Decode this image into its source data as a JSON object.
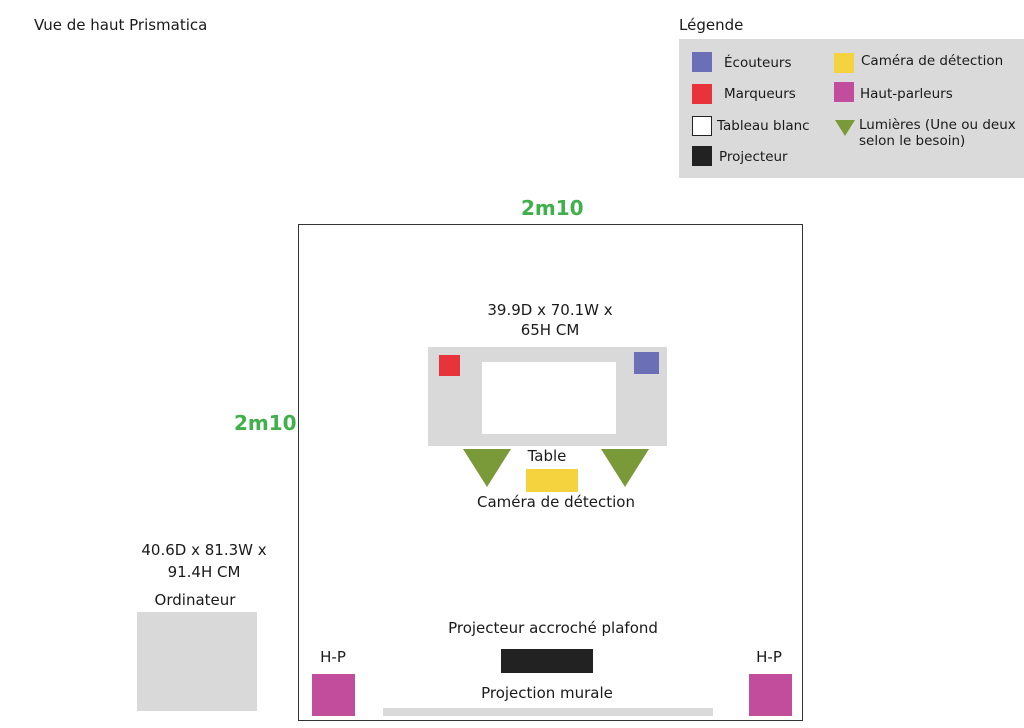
{
  "title": "Vue de haut Prismatica",
  "legend": {
    "title": "Légende",
    "items": {
      "ecouteurs": "Écouteurs",
      "marqueurs": "Marqueurs",
      "tableau": "Tableau blanc",
      "projecteur": "Projecteur",
      "camera": "Caméra de détection",
      "hp": "Haut-parleurs",
      "lumieres_1": "Lumières (Une ou deux",
      "lumieres_2": "selon le besoin)"
    }
  },
  "room": {
    "width_label": "2m10",
    "height_label": "2m10"
  },
  "table": {
    "dims_1": "39.9D x 70.1W x",
    "dims_2": "65H CM",
    "label": "Table"
  },
  "camera_label": "Caméra de détection",
  "computer": {
    "dims_1": "40.6D x 81.3W x",
    "dims_2": "91.4H CM",
    "label": "Ordinateur"
  },
  "projector_label": "Projecteur accroché plafond",
  "speaker_left_label": "H-P",
  "speaker_right_label": "H-P",
  "projection_label": "Projection murale",
  "colors": {
    "ecouteurs": "#6b6fb5",
    "marqueurs": "#e8333a",
    "tableau": "#ffffff",
    "projecteur": "#222222",
    "camera": "#f5d33f",
    "hp": "#c14d9c",
    "lumieres": "#7a9a3a",
    "dimension": "#3fb04a",
    "furniture": "#d9d9d9"
  }
}
